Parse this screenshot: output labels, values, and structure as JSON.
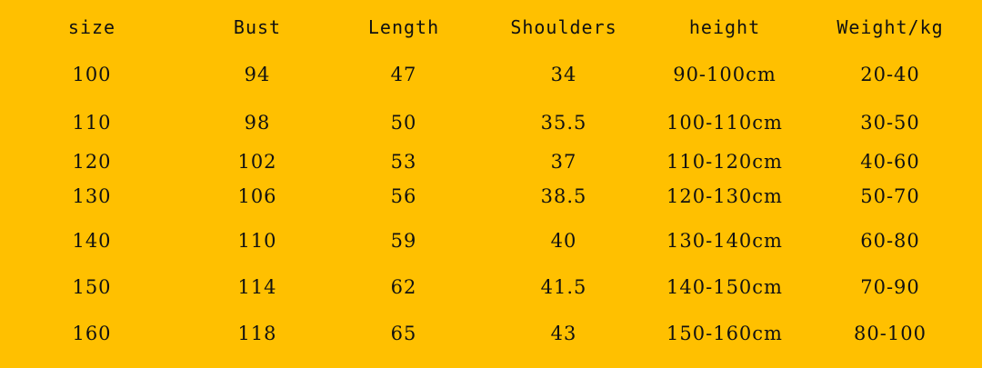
{
  "headers": [
    "size",
    "Bust",
    "Length",
    "Shoulders",
    "height",
    "Weight/kg"
  ],
  "rows": [
    [
      "100",
      "94",
      "47",
      "34",
      "90-100cm",
      "20-40"
    ],
    [
      "110",
      "98",
      "50",
      "35.5",
      "100-110cm",
      "30-50"
    ],
    [
      "120",
      "102",
      "53",
      "37",
      "110-120cm",
      "40-60"
    ],
    [
      "130",
      "106",
      "56",
      "38.5",
      "120-130cm",
      "50-70"
    ],
    [
      "140",
      "110",
      "59",
      "40",
      "130-140cm",
      "60-80"
    ],
    [
      "150",
      "114",
      "62",
      "41.5",
      "140-150cm",
      "70-90"
    ],
    [
      "160",
      "118",
      "65",
      "43",
      "150-160cm",
      "80-100"
    ]
  ],
  "colors": {
    "background": "#FFC000",
    "text": "#111111"
  }
}
